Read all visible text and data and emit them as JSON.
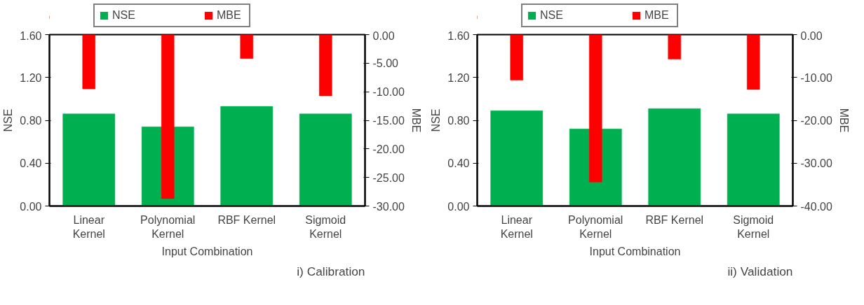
{
  "chart_data": [
    {
      "type": "bar",
      "xlabel": "Input Combination",
      "ylabel": "NSE",
      "y2label": "MBE",
      "annotations": [
        "i) Calibration"
      ],
      "categories": [
        "Linear Kernel",
        "Polynomial Kernel",
        "RBF Kernel",
        "Sigmoid Kernel"
      ],
      "series": [
        {
          "name": "NSE",
          "color": "#00b050",
          "values": [
            0.86,
            0.74,
            0.93,
            0.86
          ]
        },
        {
          "name": "MBE",
          "color": "#ff0000",
          "axis": "y2",
          "values": [
            -9.5,
            -28.7,
            -4.2,
            -10.7
          ]
        }
      ],
      "ylim": [
        0,
        1.6
      ],
      "yticks": [
        {
          "value": 0,
          "label": "0.00"
        },
        {
          "value": 0.4,
          "label": "0.40"
        },
        {
          "value": 0.8,
          "label": "0.80"
        },
        {
          "value": 1.2,
          "label": "1.20"
        },
        {
          "value": 1.6,
          "label": "1.60"
        }
      ],
      "y2lim": [
        -30,
        0
      ],
      "y2ticks": [
        {
          "value": -30,
          "label": "-30.00"
        },
        {
          "value": -25,
          "label": "-25.00"
        },
        {
          "value": -20,
          "label": "-20.00"
        },
        {
          "value": -15,
          "label": "-15.00"
        },
        {
          "value": -10,
          "label": "-10.00"
        },
        {
          "value": -5,
          "label": "-5.00"
        },
        {
          "value": 0,
          "label": "0.00"
        }
      ],
      "legend": "top",
      "grid": false
    },
    {
      "type": "bar",
      "xlabel": "Input Combination",
      "ylabel": "NSE",
      "y2label": "MBE",
      "annotations": [
        "ii) Validation"
      ],
      "categories": [
        "Linear Kernel",
        "Polynomial Kernel",
        "RBF Kernel",
        "Sigmoid Kernel"
      ],
      "series": [
        {
          "name": "NSE",
          "color": "#00b050",
          "values": [
            0.89,
            0.72,
            0.91,
            0.86
          ]
        },
        {
          "name": "MBE",
          "color": "#ff0000",
          "axis": "y2",
          "values": [
            -10.6,
            -34.4,
            -5.7,
            -12.8
          ]
        }
      ],
      "ylim": [
        0,
        1.6
      ],
      "yticks": [
        {
          "value": 0,
          "label": "0.00"
        },
        {
          "value": 0.4,
          "label": "0.40"
        },
        {
          "value": 0.8,
          "label": "0.80"
        },
        {
          "value": 1.2,
          "label": "1.20"
        },
        {
          "value": 1.6,
          "label": "1.60"
        }
      ],
      "y2lim": [
        -40,
        0
      ],
      "y2ticks": [
        {
          "value": -40,
          "label": "-40.00"
        },
        {
          "value": -30,
          "label": "-30.00"
        },
        {
          "value": -20,
          "label": "-20.00"
        },
        {
          "value": -10,
          "label": "-10.00"
        },
        {
          "value": 0,
          "label": "0.00"
        }
      ],
      "legend": "top",
      "grid": false
    }
  ]
}
